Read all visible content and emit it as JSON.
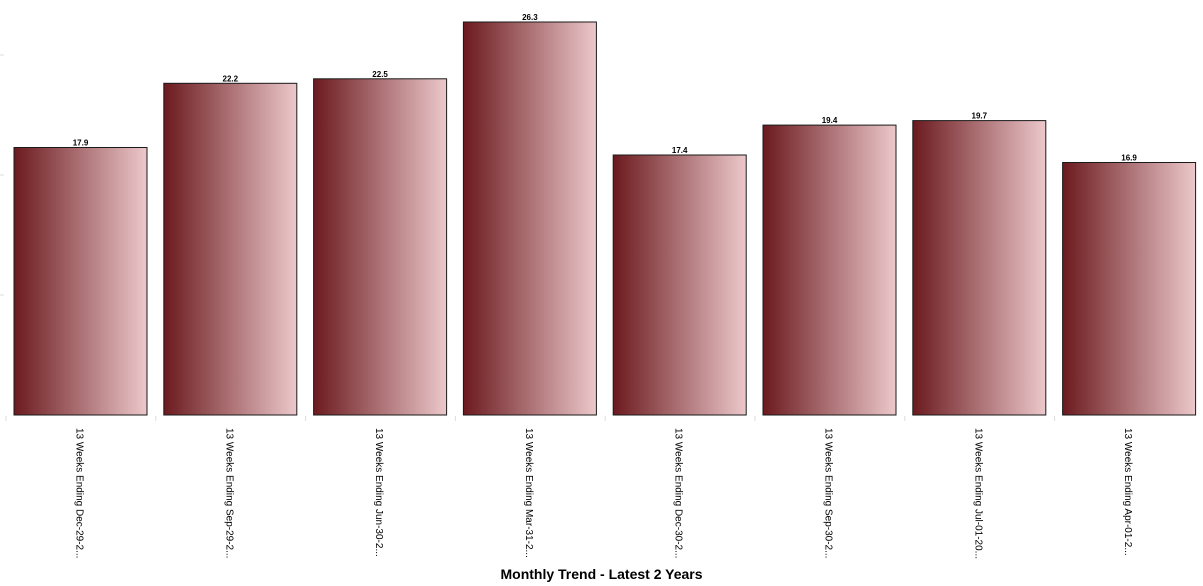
{
  "chart_data": {
    "type": "bar",
    "title": "Monthly Trend - Latest 2 Years",
    "xlabel": "",
    "ylabel": "",
    "categories": [
      "13 Weeks Ending Dec-29-2...",
      "13 Weeks Ending Sep-29-2...",
      "13 Weeks Ending Jun-30-2...",
      "13 Weeks Ending Mar-31-2...",
      "13 Weeks Ending Dec-30-2...",
      "13 Weeks Ending Sep-30-2...",
      "13 Weeks Ending Jul-01-20...",
      "13 Weeks Ending Apr-01-2..."
    ],
    "values": [
      17.9,
      22.2,
      22.5,
      26.3,
      17.4,
      19.4,
      19.7,
      16.9
    ],
    "data_labels": [
      "17.9",
      "22.2",
      "22.5",
      "26.3",
      "17.4",
      "19.4",
      "19.7",
      "16.9"
    ],
    "ylim": [
      0,
      26.5
    ],
    "grid": false,
    "legend": "none",
    "colors": {
      "bar_dark": "#6b1a1e",
      "bar_light": "#ecc8cb",
      "bar_stroke": "#1a1a1a"
    }
  }
}
